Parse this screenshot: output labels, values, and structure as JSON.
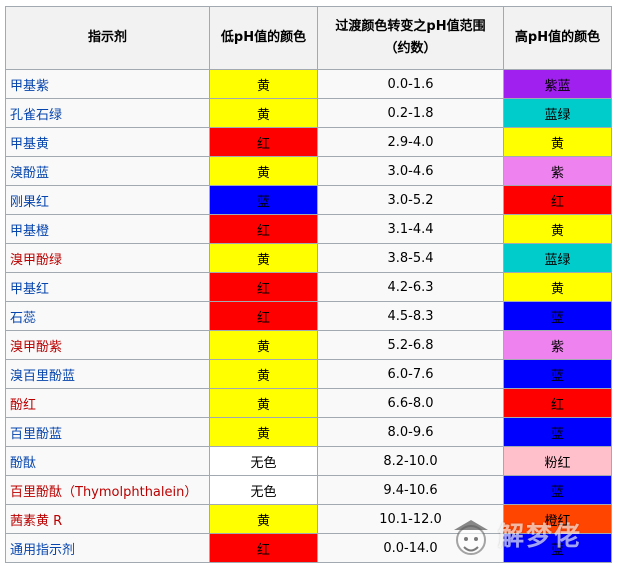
{
  "headers": [
    "指示剂",
    "低pH值的颜色",
    "过渡颜色转变之pH值范围（约数）",
    "高pH值的颜色"
  ],
  "colors": {
    "yellow": "#ffff00",
    "red": "#ff0000",
    "blue": "#0000ff",
    "purple": "#a020f0",
    "cyan": "#00cccc",
    "violet": "#ee82ee",
    "pink": "#ffc0cb",
    "orange": "#ff4500",
    "white": "#ffffff",
    "link_blue": "#0645ad",
    "link_red": "#ba0000"
  },
  "rows": [
    {
      "name": "甲基紫",
      "link": "blue",
      "low": "黄",
      "low_color": "yellow",
      "range": "0.0-1.6",
      "high": "紫蓝",
      "high_color": "purple"
    },
    {
      "name": "孔雀石绿",
      "link": "blue",
      "low": "黄",
      "low_color": "yellow",
      "range": "0.2-1.8",
      "high": "蓝绿",
      "high_color": "cyan"
    },
    {
      "name": "甲基黄",
      "link": "blue",
      "low": "红",
      "low_color": "red",
      "range": "2.9-4.0",
      "high": "黄",
      "high_color": "yellow"
    },
    {
      "name": "溴酚蓝",
      "link": "blue",
      "low": "黄",
      "low_color": "yellow",
      "range": "3.0-4.6",
      "high": "紫",
      "high_color": "violet"
    },
    {
      "name": "刚果红",
      "link": "blue",
      "low": "蓝",
      "low_color": "blue",
      "range": "3.0-5.2",
      "high": "红",
      "high_color": "red"
    },
    {
      "name": "甲基橙",
      "link": "blue",
      "low": "红",
      "low_color": "red",
      "range": "3.1-4.4",
      "high": "黄",
      "high_color": "yellow"
    },
    {
      "name": "溴甲酚绿",
      "link": "red",
      "low": "黄",
      "low_color": "yellow",
      "range": "3.8-5.4",
      "high": "蓝绿",
      "high_color": "cyan"
    },
    {
      "name": "甲基红",
      "link": "blue",
      "low": "红",
      "low_color": "red",
      "range": "4.2-6.3",
      "high": "黄",
      "high_color": "yellow"
    },
    {
      "name": "石蕊",
      "link": "blue",
      "low": "红",
      "low_color": "red",
      "range": "4.5-8.3",
      "high": "蓝",
      "high_color": "blue"
    },
    {
      "name": "溴甲酚紫",
      "link": "red",
      "low": "黄",
      "low_color": "yellow",
      "range": "5.2-6.8",
      "high": "紫",
      "high_color": "violet"
    },
    {
      "name": "溴百里酚蓝",
      "link": "blue",
      "low": "黄",
      "low_color": "yellow",
      "range": "6.0-7.6",
      "high": "蓝",
      "high_color": "blue"
    },
    {
      "name": "酚红",
      "link": "red",
      "low": "黄",
      "low_color": "yellow",
      "range": "6.6-8.0",
      "high": "红",
      "high_color": "red"
    },
    {
      "name": "百里酚蓝",
      "link": "blue",
      "low": "黄",
      "low_color": "yellow",
      "range": "8.0-9.6",
      "high": "蓝",
      "high_color": "blue"
    },
    {
      "name": "酚酞",
      "link": "blue",
      "low": "无色",
      "low_color": "white",
      "range": "8.2-10.0",
      "high": "粉红",
      "high_color": "pink"
    },
    {
      "name": "百里酚酞（Thymolphthalein）",
      "link": "red",
      "low": "无色",
      "low_color": "white",
      "range": "9.4-10.6",
      "high": "蓝",
      "high_color": "blue"
    },
    {
      "name": "茜素黄 R",
      "link": "red",
      "low": "黄",
      "low_color": "yellow",
      "range": "10.1-12.0",
      "high": "橙红",
      "high_color": "orange"
    },
    {
      "name": "通用指示剂",
      "link": "blue",
      "low": "红",
      "low_color": "red",
      "range": "0.0-14.0",
      "high": "蓝",
      "high_color": "blue"
    }
  ],
  "watermark": "解梦佬"
}
